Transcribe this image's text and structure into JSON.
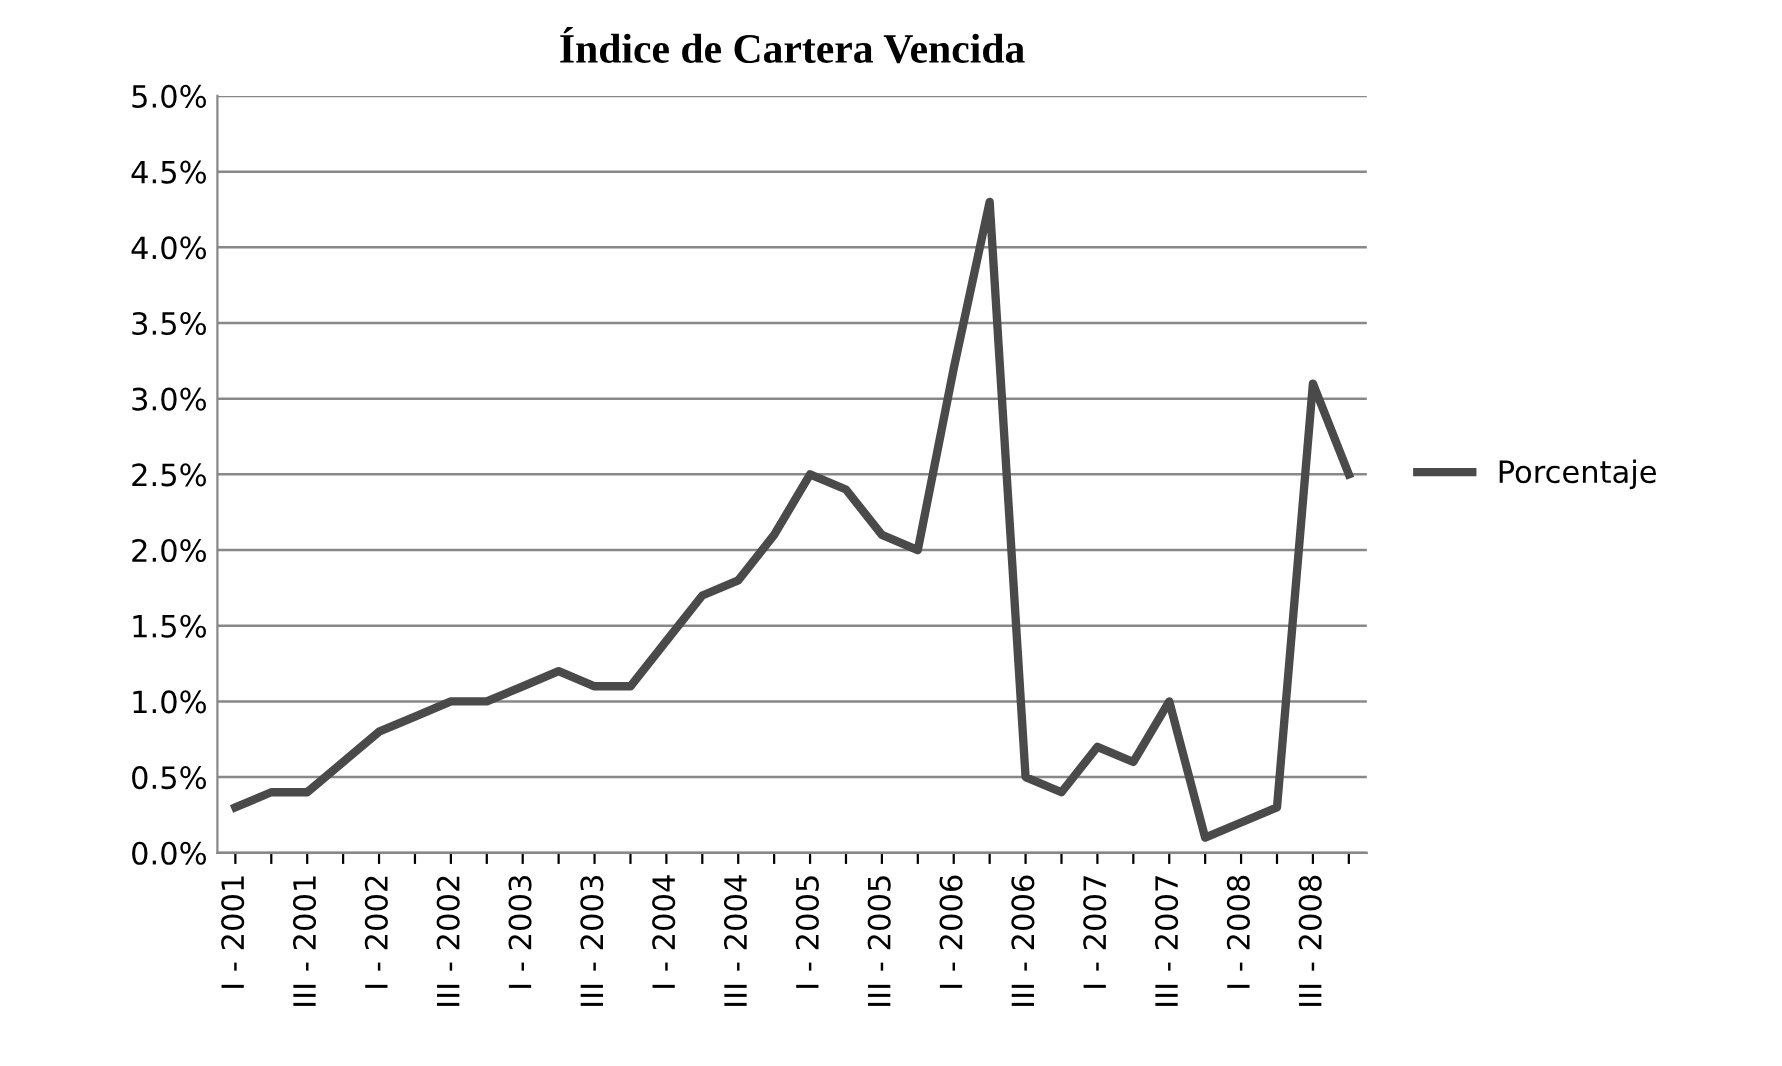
{
  "chart_data": {
    "type": "line",
    "title": "Índice de Cartera Vencida",
    "categories": [
      "I - 2001",
      null,
      "III - 2001",
      null,
      "I - 2002",
      null,
      "III - 2002",
      null,
      "I - 2003",
      null,
      "III - 2003",
      null,
      "I - 2004",
      null,
      "III - 2004",
      null,
      "I - 2005",
      null,
      "III - 2005",
      null,
      "I - 2006",
      null,
      "III - 2006",
      null,
      "I - 2007",
      null,
      "III - 2007",
      null,
      "I - 2008",
      null,
      "III - 2008",
      null
    ],
    "series": [
      {
        "name": "Porcentaje",
        "color": "#4a4a4a",
        "values": [
          0.3,
          0.4,
          0.4,
          0.6,
          0.8,
          0.9,
          1.0,
          1.0,
          1.1,
          1.2,
          1.1,
          1.1,
          1.4,
          1.7,
          1.8,
          2.1,
          2.5,
          2.4,
          2.1,
          2.0,
          3.2,
          4.3,
          0.5,
          0.4,
          0.7,
          0.6,
          1.0,
          0.1,
          0.2,
          0.3,
          3.1,
          2.5
        ]
      }
    ],
    "ylim": [
      0,
      5
    ],
    "yticks": [
      {
        "value": 0,
        "label": "0.0%"
      },
      {
        "value": 0.5,
        "label": "0.5%"
      },
      {
        "value": 1,
        "label": "1.0%"
      },
      {
        "value": 1.5,
        "label": "1.5%"
      },
      {
        "value": 2,
        "label": "2.0%"
      },
      {
        "value": 2.5,
        "label": "2.5%"
      },
      {
        "value": 3,
        "label": "3.0%"
      },
      {
        "value": 3.5,
        "label": "3.5%"
      },
      {
        "value": 4,
        "label": "4.0%"
      },
      {
        "value": 4.5,
        "label": "4.5%"
      },
      {
        "value": 5,
        "label": "5.0%"
      }
    ],
    "grid": "y",
    "legend": "right",
    "marker": "none",
    "line_style": "solid"
  }
}
